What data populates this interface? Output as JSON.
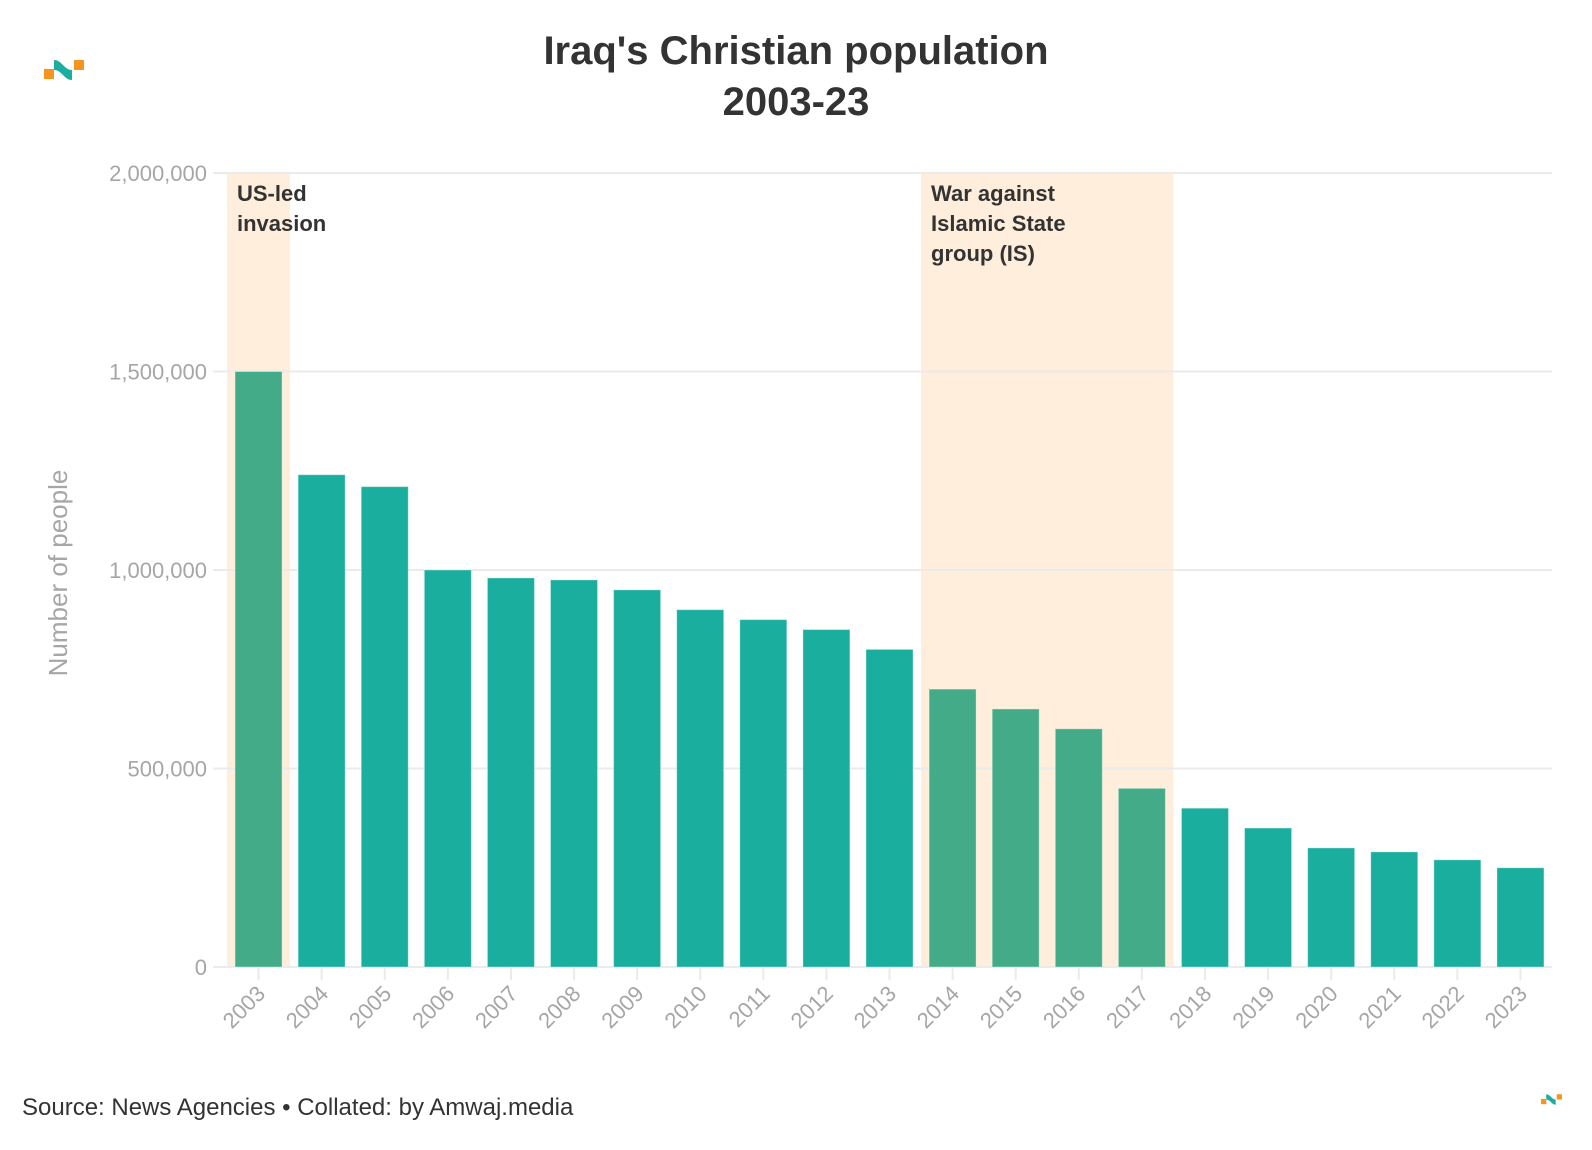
{
  "header": {
    "title_line1": "Iraq's Christian population",
    "title_line2": "2003-23",
    "logo": "amwaj-logo-icon"
  },
  "footer": {
    "source": "Source: News Agencies • Collated: by Amwaj.media",
    "logo": "amwaj-logo-icon"
  },
  "colors": {
    "bar": "#1aae9f",
    "bar_highlighted": "#44ab88",
    "band": "#feeedb",
    "text": "#333333",
    "axis_text": "#a6a6a6",
    "grid": "#ebebeb",
    "logo_orange": "#f7941d",
    "logo_teal": "#1aae9f"
  },
  "chart_data": {
    "type": "bar",
    "title": "Iraq's Christian population 2003-23",
    "xlabel": "",
    "ylabel": "Number of people",
    "ylim": [
      0,
      2000000
    ],
    "yticks": [
      0,
      500000,
      1000000,
      1500000,
      2000000
    ],
    "ytick_labels": [
      "0",
      "500,000",
      "1,000,000",
      "1,500,000",
      "2,000,000"
    ],
    "grid": true,
    "categories": [
      "2003",
      "2004",
      "2005",
      "2006",
      "2007",
      "2008",
      "2009",
      "2010",
      "2011",
      "2012",
      "2013",
      "2014",
      "2015",
      "2016",
      "2017",
      "2018",
      "2019",
      "2020",
      "2021",
      "2022",
      "2023"
    ],
    "values": [
      1500000,
      1240000,
      1210000,
      1000000,
      980000,
      975000,
      950000,
      900000,
      875000,
      850000,
      800000,
      700000,
      650000,
      600000,
      450000,
      400000,
      350000,
      300000,
      290000,
      270000,
      250000
    ],
    "highlight_bands": [
      {
        "from": "2003",
        "to": "2003",
        "label_lines": [
          "US-led",
          "invasion"
        ]
      },
      {
        "from": "2014",
        "to": "2017",
        "label_lines": [
          "War against",
          "Islamic State",
          "group (IS)"
        ]
      }
    ]
  }
}
